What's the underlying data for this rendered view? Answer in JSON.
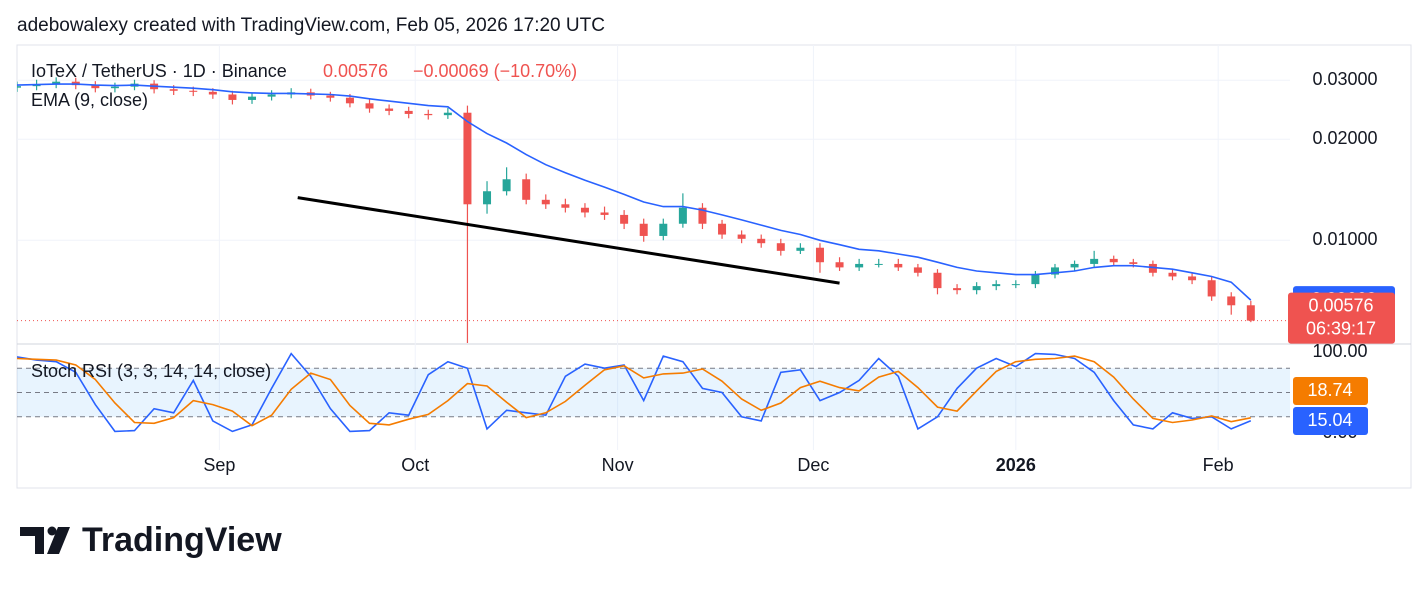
{
  "header": {
    "text": "adebowalexy created with TradingView.com, Feb 05, 2026 17:20 UTC"
  },
  "footer": {
    "brand": "TradingView"
  },
  "chart_data": {
    "type": "candlestick",
    "title": "IoTeX / TetherUS · 1D · Binance",
    "change": "−0.00069 (−10.70%)",
    "countdown": "06:39:17",
    "x": [
      0,
      3,
      6,
      9,
      12,
      15,
      18,
      21,
      24,
      27,
      30,
      33,
      36,
      39,
      42,
      45,
      48,
      51,
      54,
      57,
      60,
      63,
      66,
      69,
      72,
      75,
      78,
      81,
      84,
      87,
      90,
      93,
      96,
      99,
      102,
      105,
      108,
      111,
      114,
      117,
      120,
      123,
      126,
      129,
      132,
      135,
      138,
      141,
      144,
      147,
      150,
      153,
      156,
      159,
      162,
      165,
      168,
      171,
      174,
      177,
      180,
      183,
      186,
      189
    ],
    "open": [
      0.0285,
      0.0288,
      0.0292,
      0.0297,
      0.029,
      0.0284,
      0.0287,
      0.0293,
      0.0282,
      0.0279,
      0.0277,
      0.0272,
      0.0262,
      0.0268,
      0.0272,
      0.0276,
      0.027,
      0.0266,
      0.0256,
      0.0247,
      0.0243,
      0.0238,
      0.0236,
      0.024,
      0.0128,
      0.014,
      0.0152,
      0.0132,
      0.0128,
      0.0125,
      0.0121,
      0.0119,
      0.0112,
      0.0103,
      0.0112,
      0.0125,
      0.0112,
      0.0104,
      0.0101,
      0.0098,
      0.0093,
      0.0095,
      0.0086,
      0.0083,
      0.0085,
      0.0085,
      0.0083,
      0.008,
      0.0072,
      0.0071,
      0.0073,
      0.0074,
      0.0074,
      0.0079,
      0.0083,
      0.0085,
      0.0088,
      0.0086,
      0.0085,
      0.008,
      0.0078,
      0.0076,
      0.0068,
      0.0064
    ],
    "high": [
      0.0297,
      0.0301,
      0.0306,
      0.0305,
      0.0298,
      0.0295,
      0.0301,
      0.03,
      0.029,
      0.0287,
      0.0284,
      0.0279,
      0.0276,
      0.028,
      0.0284,
      0.0283,
      0.0277,
      0.0273,
      0.0263,
      0.0254,
      0.025,
      0.0245,
      0.0248,
      0.0252,
      0.015,
      0.0165,
      0.0158,
      0.0137,
      0.0133,
      0.0129,
      0.0126,
      0.0123,
      0.0116,
      0.0116,
      0.0138,
      0.0129,
      0.0115,
      0.0107,
      0.0104,
      0.0101,
      0.0098,
      0.0098,
      0.0089,
      0.0088,
      0.0088,
      0.0088,
      0.0085,
      0.0082,
      0.0074,
      0.0075,
      0.0076,
      0.0076,
      0.0081,
      0.0085,
      0.0087,
      0.0093,
      0.009,
      0.0088,
      0.0087,
      0.0082,
      0.008,
      0.0078,
      0.007,
      0.0066
    ],
    "low": [
      0.0277,
      0.028,
      0.0284,
      0.0282,
      0.0276,
      0.0276,
      0.028,
      0.0274,
      0.0271,
      0.0269,
      0.0264,
      0.0254,
      0.0255,
      0.0261,
      0.0265,
      0.0263,
      0.0259,
      0.0249,
      0.024,
      0.0236,
      0.0231,
      0.0229,
      0.023,
      0.0049,
      0.012,
      0.0136,
      0.0128,
      0.0124,
      0.0121,
      0.0117,
      0.0115,
      0.0108,
      0.0099,
      0.01,
      0.0109,
      0.0108,
      0.0101,
      0.0098,
      0.0095,
      0.009,
      0.0091,
      0.008,
      0.0081,
      0.0081,
      0.0083,
      0.0081,
      0.0078,
      0.0069,
      0.0069,
      0.0069,
      0.0071,
      0.0072,
      0.0072,
      0.0077,
      0.0081,
      0.0083,
      0.0084,
      0.0083,
      0.0078,
      0.0076,
      0.0074,
      0.0066,
      0.006,
      0.0057
    ],
    "close": [
      0.0288,
      0.0292,
      0.0297,
      0.029,
      0.0284,
      0.0287,
      0.0293,
      0.0282,
      0.0279,
      0.0277,
      0.0272,
      0.0262,
      0.0268,
      0.0272,
      0.0276,
      0.027,
      0.0266,
      0.0256,
      0.0247,
      0.0243,
      0.0238,
      0.0236,
      0.024,
      0.0128,
      0.014,
      0.0152,
      0.0132,
      0.0128,
      0.0125,
      0.0121,
      0.0119,
      0.0112,
      0.0103,
      0.0112,
      0.0125,
      0.0112,
      0.0104,
      0.0101,
      0.0098,
      0.0093,
      0.0095,
      0.0086,
      0.0083,
      0.0085,
      0.0085,
      0.0083,
      0.008,
      0.0072,
      0.0071,
      0.0073,
      0.0074,
      0.0074,
      0.0079,
      0.0083,
      0.0085,
      0.0088,
      0.0086,
      0.0085,
      0.008,
      0.0078,
      0.0076,
      0.0068,
      0.0064,
      0.00576
    ],
    "up_color": "#26a69a",
    "down_color": "#ef5350",
    "log_scale": true,
    "ylim": [
      0.00494,
      0.0382
    ],
    "yticks": [
      {
        "value": 0.03,
        "label": "0.03000"
      },
      {
        "value": 0.02,
        "label": "0.02000"
      },
      {
        "value": 0.01,
        "label": "0.01000"
      }
    ],
    "xlim": [
      0,
      195
    ],
    "xticks": [
      {
        "value": 31,
        "label": "Sep"
      },
      {
        "value": 61,
        "label": "Oct"
      },
      {
        "value": 92,
        "label": "Nov"
      },
      {
        "value": 122,
        "label": "Dec"
      },
      {
        "value": 153,
        "label": "2026"
      },
      {
        "value": 184,
        "label": "Feb"
      }
    ],
    "grid": true,
    "series": [
      {
        "name": "EMA (9, close)",
        "color": "#2962ff",
        "values": [
          0.029,
          0.0291,
          0.0292,
          0.0292,
          0.029,
          0.0289,
          0.029,
          0.0288,
          0.0286,
          0.0284,
          0.0281,
          0.0277,
          0.0275,
          0.0274,
          0.0274,
          0.0273,
          0.0272,
          0.0269,
          0.0264,
          0.026,
          0.0256,
          0.0252,
          0.025,
          0.0226,
          0.0208,
          0.0195,
          0.018,
          0.0168,
          0.0159,
          0.0151,
          0.0144,
          0.0137,
          0.013,
          0.0126,
          0.0126,
          0.0123,
          0.0119,
          0.0115,
          0.0111,
          0.0107,
          0.0104,
          0.01,
          0.0097,
          0.0094,
          0.0093,
          0.0091,
          0.0089,
          0.0086,
          0.0083,
          0.0081,
          0.008,
          0.0079,
          0.0079,
          0.008,
          0.0081,
          0.0083,
          0.0084,
          0.0084,
          0.0083,
          0.0082,
          0.008,
          0.0078,
          0.0075,
          0.00663
        ]
      }
    ],
    "trendline": {
      "x": [
        43,
        126
      ],
      "y": [
        0.0134,
        0.00745
      ],
      "color": "#000000"
    },
    "indicator": {
      "type": "line",
      "title": "Stoch RSI (3, 3, 14, 14, close)",
      "ylim": [
        0,
        100
      ],
      "yticks": [
        {
          "value": 100,
          "label": "100.00"
        },
        {
          "value": 0,
          "label": "0.00"
        }
      ],
      "levels": [
        80,
        50,
        20
      ],
      "series": [
        {
          "color": "#2962ff",
          "values": [
            94,
            90,
            88,
            75,
            35,
            2,
            3,
            30,
            25,
            65,
            15,
            2,
            10,
            55,
            98,
            70,
            30,
            2,
            3,
            25,
            22,
            72,
            88,
            80,
            5,
            28,
            25,
            22,
            70,
            85,
            80,
            84,
            40,
            95,
            88,
            55,
            50,
            20,
            15,
            75,
            78,
            40,
            50,
            65,
            92,
            70,
            5,
            20,
            55,
            80,
            92,
            82,
            98,
            97,
            92,
            75,
            40,
            10,
            5,
            25,
            18,
            20,
            5,
            15.04
          ]
        },
        {
          "color": "#f57c00",
          "values": [
            92,
            91,
            90,
            84,
            66,
            37,
            13,
            12,
            19,
            40,
            35,
            27,
            9,
            22,
            54,
            74,
            66,
            34,
            12,
            10,
            17,
            23,
            40,
            61,
            58,
            38,
            19,
            25,
            39,
            59,
            78,
            83,
            68,
            73,
            74,
            79,
            64,
            42,
            28,
            37,
            56,
            64,
            56,
            52,
            69,
            76,
            56,
            32,
            27,
            52,
            76,
            88,
            91,
            92,
            95,
            88,
            69,
            42,
            18,
            13,
            16,
            21,
            14,
            18.74
          ]
        }
      ]
    }
  }
}
